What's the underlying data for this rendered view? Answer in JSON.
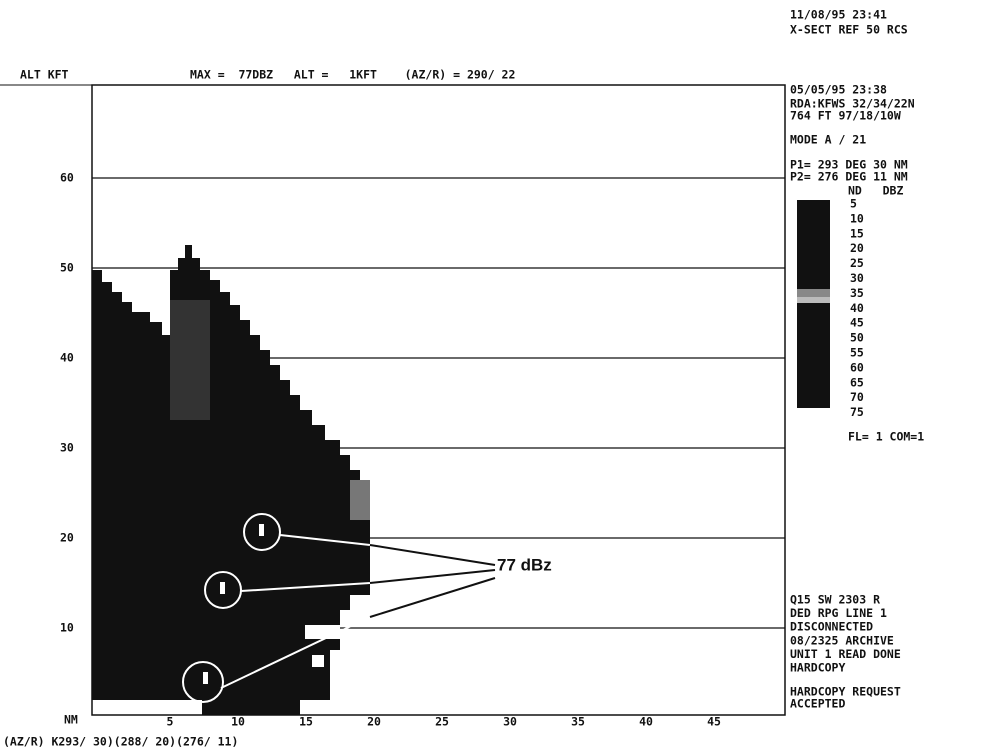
{
  "header": {
    "date": "11/08/95 23:41",
    "product": "X-SECT REF 50 RCS",
    "axis_label": "ALT KFT",
    "summary": "MAX =  77DBZ   ALT =   1KFT    (AZ/R) = 290/ 22"
  },
  "plot": {
    "yticks": [
      "60",
      "50",
      "40",
      "30",
      "20",
      "10"
    ],
    "xunit": "NM",
    "xticks": [
      "5",
      "10",
      "15",
      "20",
      "25",
      "30",
      "35",
      "40",
      "45"
    ],
    "path": "(AZ/R) K293/ 30)(288/ 20)(276/ 11)",
    "annotation": "77 dBz"
  },
  "panel": {
    "lines": [
      "05/05/95 23:38",
      "RDA:KFWS 32/34/22N",
      " 764 FT  97/18/10W",
      "MODE A /   21",
      "P1= 293 DEG  30 NM",
      "P2= 276 DEG  11 NM"
    ],
    "legend_header": "ND   DBZ",
    "levels": [
      "5",
      "10",
      "15",
      "20",
      "25",
      "30",
      "35",
      "40",
      "45",
      "50",
      "55",
      "60",
      "65",
      "70",
      "75"
    ],
    "footer": "FL= 1 COM=1",
    "status": [
      "Q15 SW   2303        R",
      "DED  RPG LINE 1",
      "DISCONNECTED",
      "08/2325 ARCHIVE",
      "UNIT 1 READ DONE",
      "HARDCOPY"
    ],
    "message": [
      "HARDCOPY REQUEST",
      "ACCEPTED"
    ]
  }
}
